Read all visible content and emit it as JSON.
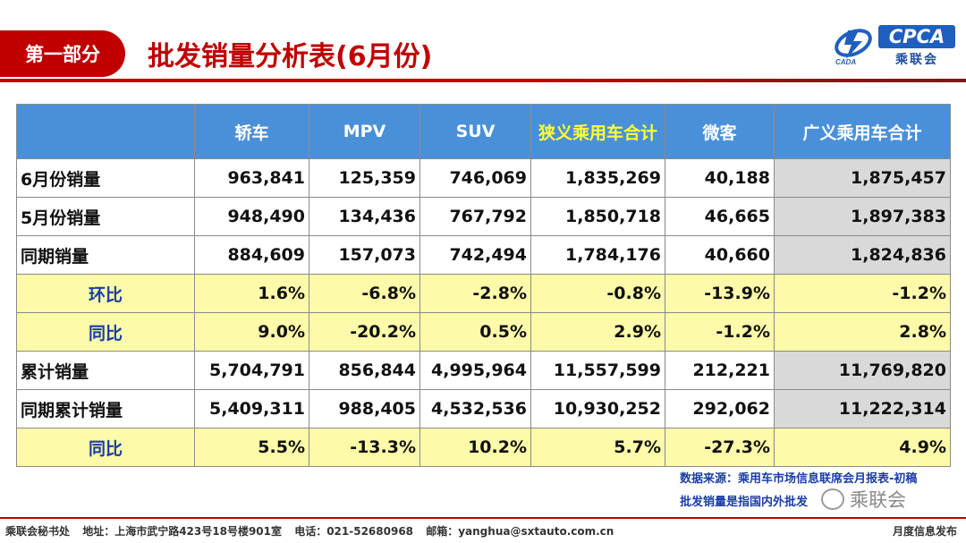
{
  "header": {
    "badge": "第一部分",
    "title": "批发销量分析表(6月份)"
  },
  "logo": {
    "box_text": "CPCA",
    "cn_text": "乘联会",
    "emblem_color": "#1f5fbf"
  },
  "table": {
    "columns": [
      "",
      "轿车",
      "MPV",
      "SUV",
      "狭义乘用车合计",
      "微客",
      "广义乘用车合计"
    ],
    "rows": [
      {
        "label": "6月份销量",
        "values": [
          "963,841",
          "125,359",
          "746,069",
          "1,835,269",
          "40,188",
          "1,875,457"
        ]
      },
      {
        "label": "5月份销量",
        "values": [
          "948,490",
          "134,436",
          "767,792",
          "1,850,718",
          "46,665",
          "1,897,383"
        ]
      },
      {
        "label": "同期销量",
        "values": [
          "884,609",
          "157,073",
          "742,494",
          "1,784,176",
          "40,660",
          "1,824,836"
        ]
      },
      {
        "label": "环比",
        "values": [
          "1.6%",
          "-6.8%",
          "-2.8%",
          "-0.8%",
          "-13.9%",
          "-1.2%"
        ]
      },
      {
        "label": "同比",
        "values": [
          "9.0%",
          "-20.2%",
          "0.5%",
          "2.9%",
          "-1.2%",
          "2.8%"
        ]
      },
      {
        "label": "累计销量",
        "values": [
          "5,704,791",
          "856,844",
          "4,995,964",
          "11,557,599",
          "212,221",
          "11,769,820"
        ]
      },
      {
        "label": "同期累计销量",
        "values": [
          "5,409,311",
          "988,405",
          "4,532,536",
          "10,930,252",
          "292,062",
          "11,222,314"
        ]
      },
      {
        "label": "同比",
        "values": [
          "5.5%",
          "-13.3%",
          "10.2%",
          "5.7%",
          "-27.3%",
          "4.9%"
        ]
      }
    ]
  },
  "notes": {
    "source": "数据来源：乘用车市场信息联席会月报表-初稿",
    "definition": "批发销量是指国内外批发"
  },
  "watermark": "乘联会",
  "footer": {
    "org": "乘联会秘书处",
    "address": "地址：上海市武宁路423号18号楼901室",
    "phone": "电话：021-52680968",
    "email": "邮箱：yanghua@sxtauto.com.cn",
    "right": "月度信息发布"
  },
  "colors": {
    "brand_red": "#c00000",
    "header_blue": "#4a90d9",
    "highlight_yellow": "#fdfaa9",
    "label_blue": "#1a3da8",
    "gray_col": "#d9d9d9"
  }
}
